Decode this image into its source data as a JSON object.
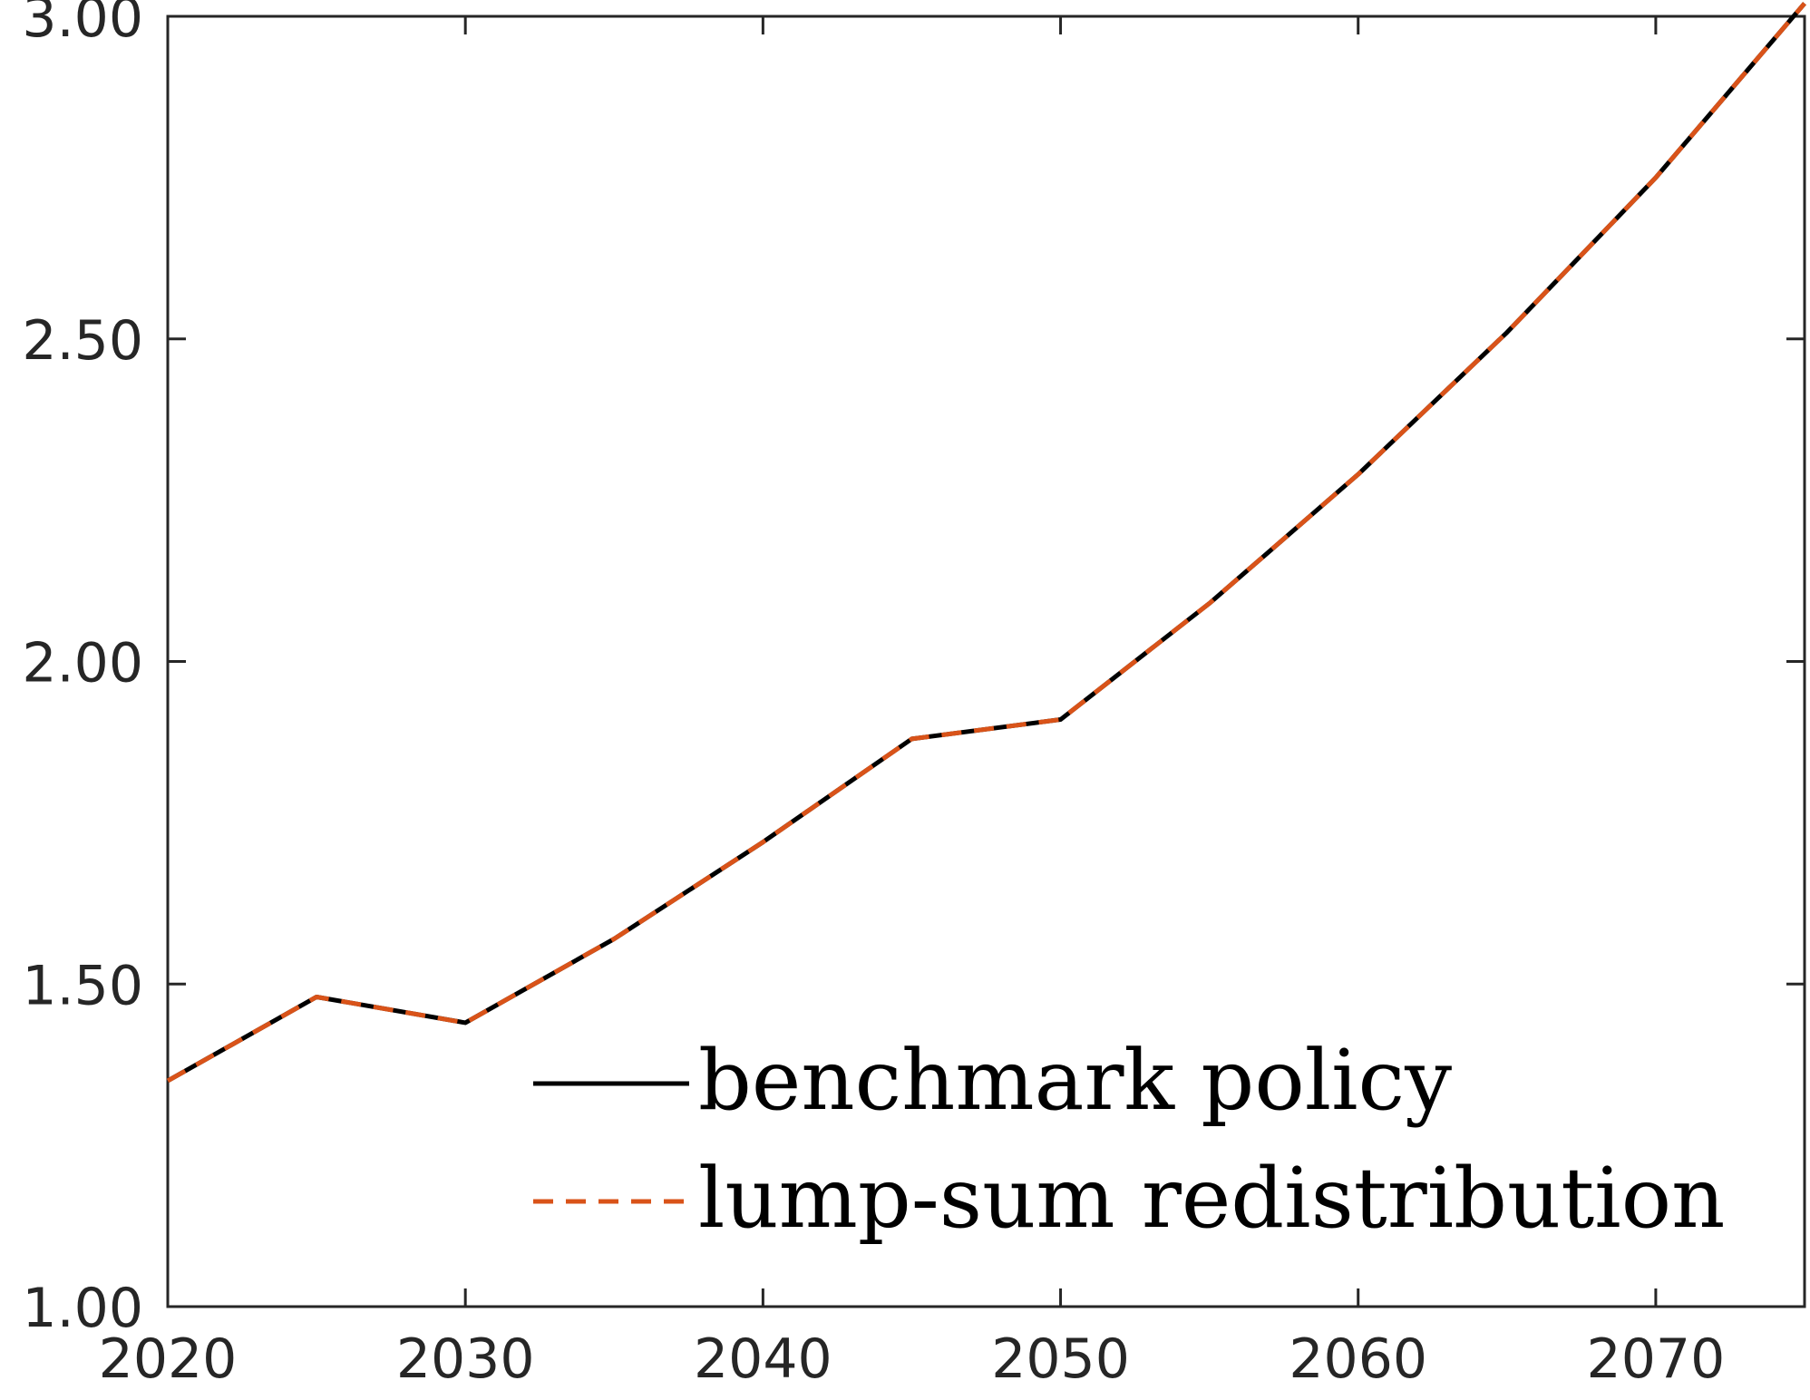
{
  "chart_data": {
    "type": "line",
    "title": "",
    "xlabel": "",
    "ylabel": "",
    "xlim": [
      2020,
      2075
    ],
    "ylim": [
      1.0,
      3.0
    ],
    "x_ticks": [
      2020,
      2030,
      2040,
      2050,
      2060,
      2070
    ],
    "x_tick_labels": [
      "2020",
      "2030",
      "2040",
      "2050",
      "2060",
      "2070"
    ],
    "y_ticks": [
      1.0,
      1.5,
      2.0,
      2.5,
      3.0
    ],
    "y_tick_labels": [
      "1.00",
      "1.50",
      "2.00",
      "2.50",
      "3.00"
    ],
    "grid": false,
    "legend_position": "bottom-right",
    "x": [
      2020,
      2025,
      2030,
      2035,
      2040,
      2045,
      2050,
      2055,
      2060,
      2065,
      2070,
      2075
    ],
    "series": [
      {
        "name": "benchmark policy",
        "color": "#000000",
        "line_style": "solid",
        "values": [
          1.35,
          1.48,
          1.44,
          1.57,
          1.72,
          1.88,
          1.91,
          2.09,
          2.29,
          2.51,
          2.75,
          3.02
        ]
      },
      {
        "name": "lump-sum redistribution",
        "color": "#D95319",
        "line_style": "dashed",
        "values": [
          1.35,
          1.48,
          1.44,
          1.57,
          1.72,
          1.88,
          1.91,
          2.09,
          2.29,
          2.51,
          2.75,
          3.02
        ]
      }
    ]
  }
}
